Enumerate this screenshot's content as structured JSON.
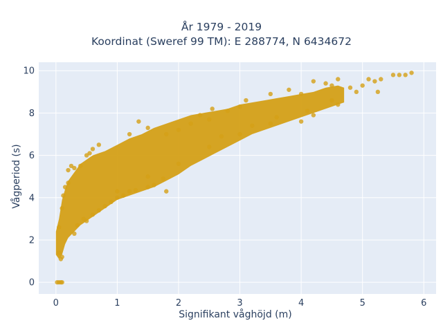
{
  "chart_data": {
    "type": "scatter",
    "title_lines": [
      "År 1979 - 2019",
      "Koordinat (Sweref 99 TM): E 288774, N 6434672"
    ],
    "xlabel": "Signifikant våghöjd (m)",
    "ylabel": "Vågperiod (s)",
    "xlim": [
      -0.28,
      6.2
    ],
    "ylim": [
      -0.55,
      10.4
    ],
    "xticks": [
      0,
      1,
      2,
      3,
      4,
      5,
      6
    ],
    "yticks": [
      0,
      2,
      4,
      6,
      8,
      10
    ],
    "grid": true,
    "legend": false,
    "colors": {
      "marker": "#d4a017",
      "plot_bg": "#e5ecf6",
      "grid": "#ffffff",
      "text": "#2a3f5f"
    },
    "series": [
      {
        "values_note": "",
        "points": [
          [
            0.02,
            0.0
          ],
          [
            0.05,
            0.0
          ],
          [
            0.08,
            0.0
          ],
          [
            0.1,
            0.0
          ],
          [
            0.05,
            1.4
          ],
          [
            0.08,
            1.1
          ],
          [
            0.1,
            1.2
          ],
          [
            0.05,
            2.6
          ],
          [
            0.1,
            3.5
          ],
          [
            0.15,
            4.5
          ],
          [
            0.12,
            4.1
          ],
          [
            0.2,
            4.7
          ],
          [
            0.3,
            5.4
          ],
          [
            0.2,
            5.3
          ],
          [
            0.4,
            5.5
          ],
          [
            0.25,
            5.5
          ],
          [
            0.5,
            6.0
          ],
          [
            0.6,
            6.3
          ],
          [
            0.7,
            6.5
          ],
          [
            0.55,
            6.1
          ],
          [
            0.3,
            2.3
          ],
          [
            0.35,
            2.7
          ],
          [
            0.45,
            3.0
          ],
          [
            0.5,
            2.9
          ],
          [
            0.6,
            3.2
          ],
          [
            0.7,
            3.4
          ],
          [
            0.8,
            3.6
          ],
          [
            0.9,
            3.8
          ],
          [
            1.0,
            4.0
          ],
          [
            1.1,
            4.1
          ],
          [
            1.2,
            4.3
          ],
          [
            1.3,
            4.35
          ],
          [
            1.5,
            4.5
          ],
          [
            1.8,
            4.3
          ],
          [
            1.6,
            4.6
          ],
          [
            1.75,
            4.9
          ],
          [
            1.8,
            7.0
          ],
          [
            1.5,
            7.3
          ],
          [
            1.2,
            7.0
          ],
          [
            1.35,
            7.6
          ],
          [
            2.0,
            7.2
          ],
          [
            2.2,
            7.5
          ],
          [
            2.5,
            7.7
          ],
          [
            2.35,
            7.9
          ],
          [
            2.8,
            8.1
          ],
          [
            2.55,
            8.2
          ],
          [
            3.0,
            8.3
          ],
          [
            3.1,
            8.6
          ],
          [
            3.5,
            8.9
          ],
          [
            3.8,
            9.1
          ],
          [
            4.0,
            8.9
          ],
          [
            4.2,
            9.5
          ],
          [
            4.4,
            9.4
          ],
          [
            4.5,
            9.3
          ],
          [
            4.6,
            9.6
          ],
          [
            4.8,
            9.2
          ],
          [
            4.9,
            9.0
          ],
          [
            5.0,
            9.3
          ],
          [
            5.1,
            9.6
          ],
          [
            5.2,
            9.5
          ],
          [
            5.3,
            9.6
          ],
          [
            5.5,
            9.8
          ],
          [
            5.6,
            9.8
          ],
          [
            5.7,
            9.8
          ],
          [
            5.8,
            9.9
          ],
          [
            5.25,
            9.0
          ],
          [
            4.5,
            8.6
          ],
          [
            4.0,
            7.6
          ],
          [
            3.5,
            7.5
          ],
          [
            3.0,
            7.0
          ],
          [
            2.5,
            6.4
          ],
          [
            2.0,
            5.6
          ],
          [
            1.5,
            5.0
          ],
          [
            1.0,
            4.3
          ],
          [
            3.6,
            7.8
          ],
          [
            4.1,
            8.1
          ],
          [
            4.6,
            8.4
          ],
          [
            4.2,
            7.9
          ],
          [
            3.2,
            7.4
          ],
          [
            2.7,
            6.9
          ]
        ]
      }
    ],
    "band": [
      [
        0.0,
        1.3,
        2.4
      ],
      [
        0.05,
        1.1,
        3.0
      ],
      [
        0.1,
        1.3,
        3.9
      ],
      [
        0.15,
        1.8,
        4.4
      ],
      [
        0.2,
        2.1,
        4.8
      ],
      [
        0.3,
        2.4,
        5.2
      ],
      [
        0.4,
        2.7,
        5.6
      ],
      [
        0.5,
        2.9,
        5.8
      ],
      [
        0.6,
        3.1,
        6.0
      ],
      [
        0.7,
        3.3,
        6.1
      ],
      [
        0.8,
        3.5,
        6.2
      ],
      [
        1.0,
        3.9,
        6.5
      ],
      [
        1.2,
        4.1,
        6.8
      ],
      [
        1.4,
        4.3,
        7.0
      ],
      [
        1.6,
        4.5,
        7.3
      ],
      [
        1.8,
        4.8,
        7.5
      ],
      [
        2.0,
        5.1,
        7.7
      ],
      [
        2.2,
        5.5,
        7.9
      ],
      [
        2.4,
        5.8,
        8.0
      ],
      [
        2.6,
        6.1,
        8.1
      ],
      [
        2.8,
        6.4,
        8.2
      ],
      [
        3.0,
        6.7,
        8.4
      ],
      [
        3.2,
        7.0,
        8.5
      ],
      [
        3.4,
        7.2,
        8.6
      ],
      [
        3.6,
        7.4,
        8.7
      ],
      [
        3.8,
        7.6,
        8.8
      ],
      [
        4.0,
        7.8,
        8.9
      ],
      [
        4.2,
        8.0,
        9.0
      ],
      [
        4.4,
        8.2,
        9.2
      ],
      [
        4.6,
        8.4,
        9.3
      ],
      [
        4.7,
        8.5,
        9.2
      ]
    ]
  }
}
